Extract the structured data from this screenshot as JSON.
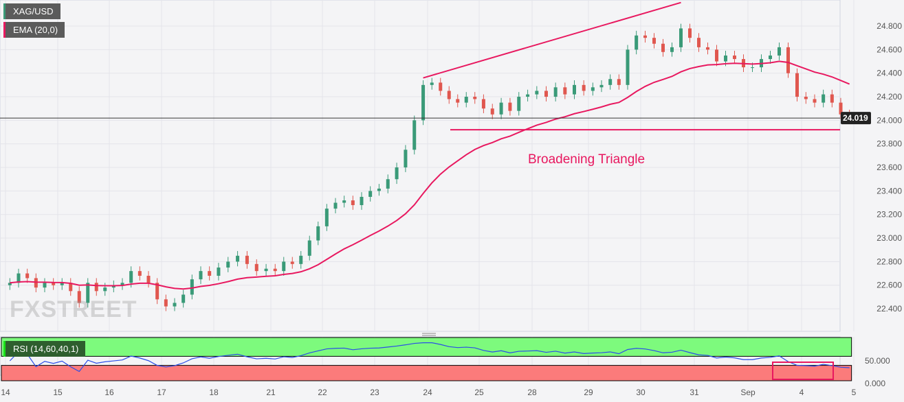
{
  "symbol_label": "XAG/USD",
  "ema_label": "EMA (20,0)",
  "rsi_label": "RSI (14,60,40,1)",
  "watermark": "FXSTREET",
  "colors": {
    "up": "#3a9a78",
    "down": "#e0574f",
    "ema": "#e8185f",
    "rsi": "#2a4de8",
    "overbought": "#7dfa7d",
    "oversold": "#fb7b7b",
    "annotation": "#e8185f"
  },
  "chart_data": {
    "type": "candlestick",
    "title": "",
    "days": [
      "14",
      "15",
      "16",
      "17",
      "18",
      "21",
      "22",
      "23",
      "24",
      "25",
      "28",
      "29",
      "30",
      "31",
      "Sep",
      "4"
    ],
    "x_tick_labels": [
      "14",
      "15",
      "16",
      "17",
      "18",
      "21",
      "22",
      "23",
      "24",
      "25",
      "28",
      "29",
      "30",
      "31",
      "Sep",
      "4",
      "5"
    ],
    "closes": [
      22.62,
      22.7,
      22.66,
      22.58,
      22.62,
      22.6,
      22.62,
      22.55,
      22.45,
      22.62,
      22.55,
      22.58,
      22.6,
      22.62,
      22.72,
      22.68,
      22.62,
      22.48,
      22.42,
      22.45,
      22.52,
      22.65,
      22.72,
      22.68,
      22.75,
      22.8,
      22.85,
      22.78,
      22.72,
      22.74,
      22.72,
      22.8,
      22.78,
      22.85,
      22.98,
      23.1,
      23.25,
      23.3,
      23.32,
      23.28,
      23.35,
      23.4,
      23.42,
      23.5,
      23.6,
      23.75,
      24.0,
      24.3,
      24.32,
      24.25,
      24.18,
      24.15,
      24.2,
      24.18,
      24.1,
      24.05,
      24.15,
      24.08,
      24.2,
      24.22,
      24.25,
      24.2,
      24.28,
      24.22,
      24.3,
      24.25,
      24.28,
      24.3,
      24.35,
      24.3,
      24.6,
      24.72,
      24.7,
      24.65,
      24.58,
      24.62,
      24.78,
      24.7,
      24.62,
      24.6,
      24.5,
      24.55,
      24.52,
      24.45,
      24.45,
      24.52,
      24.55,
      24.62,
      24.4,
      24.2,
      24.18,
      24.15,
      24.22,
      24.15,
      24.05,
      24.02
    ],
    "y_tick_labels": [
      "24.800",
      "24.600",
      "24.400",
      "24.200",
      "24.000",
      "23.800",
      "23.600",
      "23.400",
      "23.200",
      "23.000",
      "22.800",
      "22.600",
      "22.400"
    ],
    "y_ticks": [
      24.8,
      24.6,
      24.4,
      24.2,
      24.0,
      23.8,
      23.6,
      23.4,
      23.2,
      23.0,
      22.8,
      22.6,
      22.4
    ],
    "ylim": [
      22.2,
      25.0
    ],
    "current_price": 24.019,
    "current_price_label": "24.019",
    "ema_period": 20,
    "rsi": {
      "period": 14,
      "upper": 60,
      "lower": 40,
      "tick_labels": [
        "50.000",
        "0.000"
      ],
      "ticks": [
        50,
        0
      ]
    },
    "annotation": {
      "text": "Broadening Triangle",
      "upper_line": {
        "from": [
          "23",
          24.36
        ],
        "to": [
          "30",
          25.0
        ]
      },
      "support_level": 23.92
    }
  }
}
